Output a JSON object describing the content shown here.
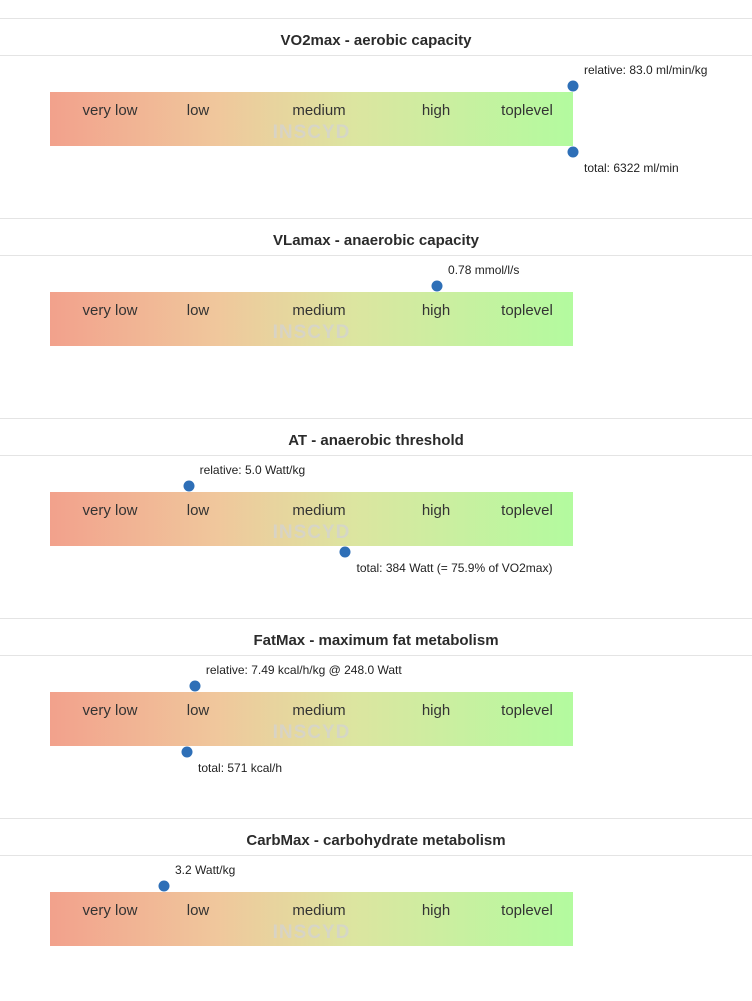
{
  "levels": [
    "very low",
    "low",
    "medium",
    "high",
    "toplevel"
  ],
  "watermark": "INSCYD",
  "colors": {
    "marker": "#2e6fb7",
    "gradient_start": "#f2a18c",
    "gradient_end": "#b3fb9f"
  },
  "panels": [
    {
      "title": "VO2max - aerobic capacity",
      "markers": [
        {
          "label": "relative: 83.0 ml/min/kg",
          "position": "above",
          "fraction": 1.0
        },
        {
          "label": "total: 6322 ml/min",
          "position": "below",
          "fraction": 1.0
        }
      ]
    },
    {
      "title": "VLamax - anaerobic capacity",
      "markers": [
        {
          "label": "0.78 mmol/l/s",
          "position": "above",
          "fraction": 0.74
        }
      ]
    },
    {
      "title": "AT - anaerobic threshold",
      "markers": [
        {
          "label": "relative: 5.0 Watt/kg",
          "position": "above",
          "fraction": 0.265
        },
        {
          "label": "total: 384 Watt (= 75.9% of VO2max)",
          "position": "below",
          "fraction": 0.565
        }
      ]
    },
    {
      "title": "FatMax - maximum fat metabolism",
      "markers": [
        {
          "label": "relative: 7.49 kcal/h/kg @ 248.0 Watt",
          "position": "above",
          "fraction": 0.277
        },
        {
          "label": "total: 571 kcal/h",
          "position": "below",
          "fraction": 0.262
        }
      ]
    },
    {
      "title": "CarbMax - carbohydrate metabolism",
      "markers": [
        {
          "label": "3.2 Watt/kg",
          "position": "above",
          "fraction": 0.218
        }
      ]
    }
  ]
}
